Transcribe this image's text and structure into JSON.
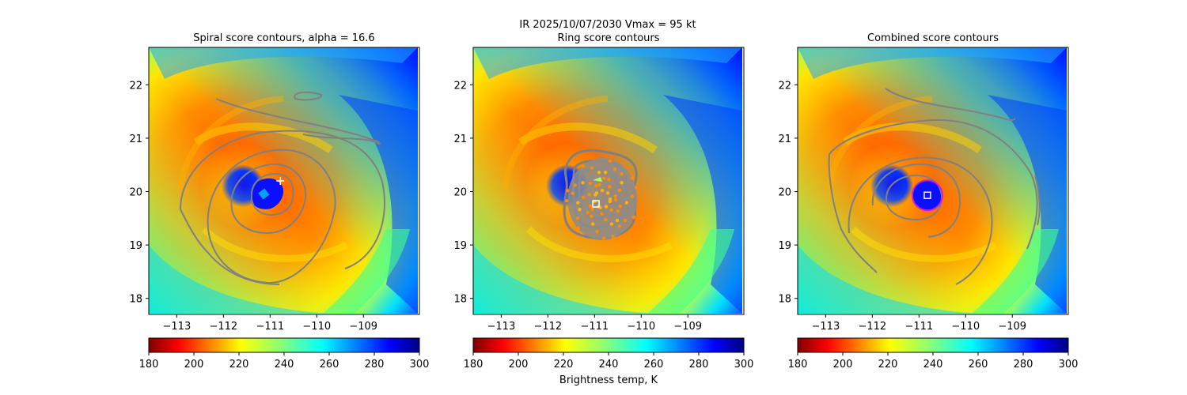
{
  "suptitle": {
    "line1": "IR  2025/10/07/2030    Vmax = 95 kt"
  },
  "colorbar_label": "Brightness temp, K",
  "chart_data": [
    {
      "type": "heatmap",
      "title": "Spiral score contours, alpha = 16.6",
      "xlim": [
        -113.6,
        -107.8
      ],
      "ylim": [
        17.7,
        22.7
      ],
      "xticks": [
        -113,
        -112,
        -111,
        -110,
        -109
      ],
      "yticks": [
        18,
        19,
        20,
        21,
        22
      ],
      "xtick_labels": [
        "−113",
        "−112",
        "−111",
        "−110",
        "−109"
      ],
      "ytick_labels": [
        "18",
        "19",
        "20",
        "21",
        "22"
      ],
      "colorbar_ticks": [
        "180",
        "200",
        "220",
        "240",
        "260",
        "280",
        "300"
      ],
      "colorbar_range": [
        180,
        300
      ],
      "colorbar_cmap": "jet_r",
      "contour_color": "#808080",
      "marker": {
        "type": "plus",
        "lon": -110.78,
        "lat": 20.2,
        "color": "#ffffff"
      }
    },
    {
      "type": "heatmap",
      "title": "Ring score contours",
      "xlim": [
        -113.6,
        -107.8
      ],
      "ylim": [
        17.7,
        22.7
      ],
      "xticks": [
        -113,
        -112,
        -111,
        -110,
        -109
      ],
      "yticks": [
        18,
        19,
        20,
        21,
        22
      ],
      "xtick_labels": [
        "−113",
        "−112",
        "−111",
        "−110",
        "−109"
      ],
      "ytick_labels": [
        "18",
        "19",
        "20",
        "21",
        "22"
      ],
      "colorbar_ticks": [
        "180",
        "200",
        "220",
        "240",
        "260",
        "280",
        "300"
      ],
      "colorbar_range": [
        180,
        300
      ],
      "colorbar_cmap": "jet_r",
      "contour_color": "#808080",
      "marker": {
        "type": "square",
        "lon": -110.97,
        "lat": 19.77,
        "color": "#ffffff"
      }
    },
    {
      "type": "heatmap",
      "title": "Combined score contours",
      "xlim": [
        -113.6,
        -107.8
      ],
      "ylim": [
        17.7,
        22.7
      ],
      "xticks": [
        -113,
        -112,
        -111,
        -110,
        -109
      ],
      "yticks": [
        18,
        19,
        20,
        21,
        22
      ],
      "xtick_labels": [
        "−113",
        "−112",
        "−111",
        "−110",
        "−109"
      ],
      "ytick_labels": [
        "18",
        "19",
        "20",
        "21",
        "22"
      ],
      "colorbar_ticks": [
        "180",
        "200",
        "220",
        "240",
        "260",
        "280",
        "300"
      ],
      "colorbar_range": [
        180,
        300
      ],
      "colorbar_cmap": "jet_r",
      "contour_color": "#808080",
      "marker": {
        "type": "square",
        "lon": -110.82,
        "lat": 19.93,
        "color": "#ffffff"
      },
      "eye_circle_color": "#d21ec8"
    }
  ]
}
